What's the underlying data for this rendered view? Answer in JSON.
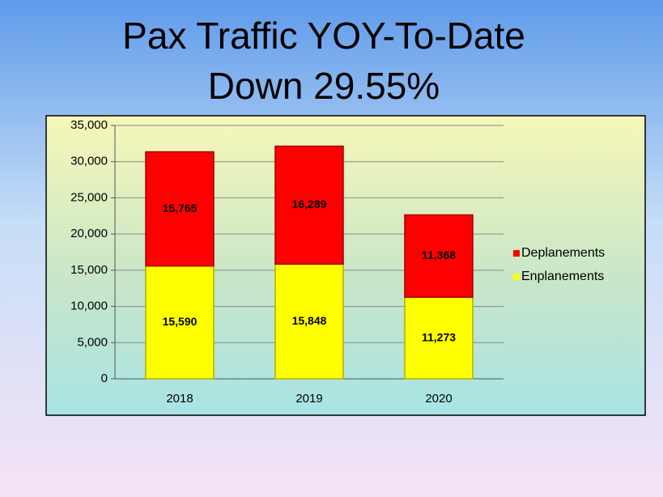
{
  "chart_data": {
    "type": "stacked_bar",
    "title": [
      "Pax Traffic YOY-To-Date",
      "Down 29.55%"
    ],
    "categories": [
      "2018",
      "2019",
      "2020"
    ],
    "series": [
      {
        "name": "Enplanements",
        "color": "#ffff00",
        "values": [
          15590,
          15848,
          11273
        ],
        "value_labels": [
          "15,590",
          "15,848",
          "11,273"
        ]
      },
      {
        "name": "Deplanements",
        "color": "#ff0000",
        "values": [
          15765,
          16289,
          11368
        ],
        "value_labels": [
          "15,765",
          "16,289",
          "11,368"
        ]
      }
    ],
    "ylim": [
      0,
      35000
    ],
    "yticks": [
      0,
      {
        "value": 5000,
        "label": "5,000"
      },
      {
        "value": 10000,
        "label": "10,000"
      },
      {
        "value": 15000,
        "label": "15,000"
      },
      {
        "value": 20000,
        "label": "20,000"
      },
      {
        "value": 25000,
        "label": "25,000"
      },
      {
        "value": 30000,
        "label": "30,000"
      },
      {
        "value": 35000,
        "label": "35,000"
      }
    ],
    "grid": true,
    "legend": "right"
  }
}
